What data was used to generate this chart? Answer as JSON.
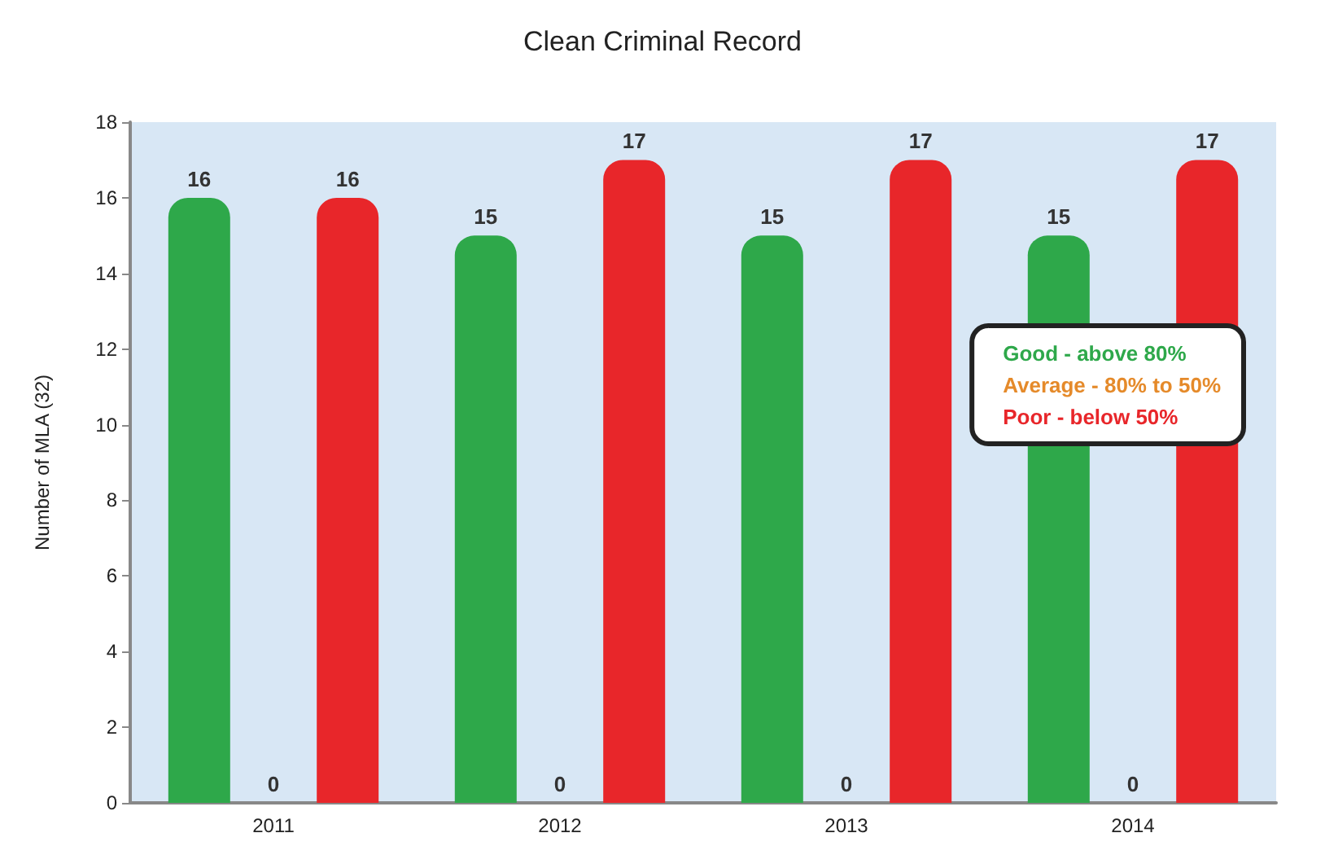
{
  "chart_data": {
    "type": "bar",
    "title": "Clean Criminal Record",
    "ylabel": "Number of MLA (32)",
    "categories": [
      "2011",
      "2012",
      "2013",
      "2014"
    ],
    "series": [
      {
        "name": "Good - above 80%",
        "color": "#2ea84a",
        "values": [
          16,
          15,
          15,
          15
        ]
      },
      {
        "name": "Average - 80% to 50%",
        "color": "#e58a2a",
        "values": [
          0,
          0,
          0,
          0
        ]
      },
      {
        "name": "Poor - below 50%",
        "color": "#e8262a",
        "values": [
          16,
          17,
          17,
          17
        ]
      }
    ],
    "ylim": [
      0,
      18
    ],
    "yticks": [
      0,
      2,
      4,
      6,
      8,
      10,
      12,
      14,
      16,
      18
    ],
    "data_labels": true,
    "legend": "right"
  }
}
